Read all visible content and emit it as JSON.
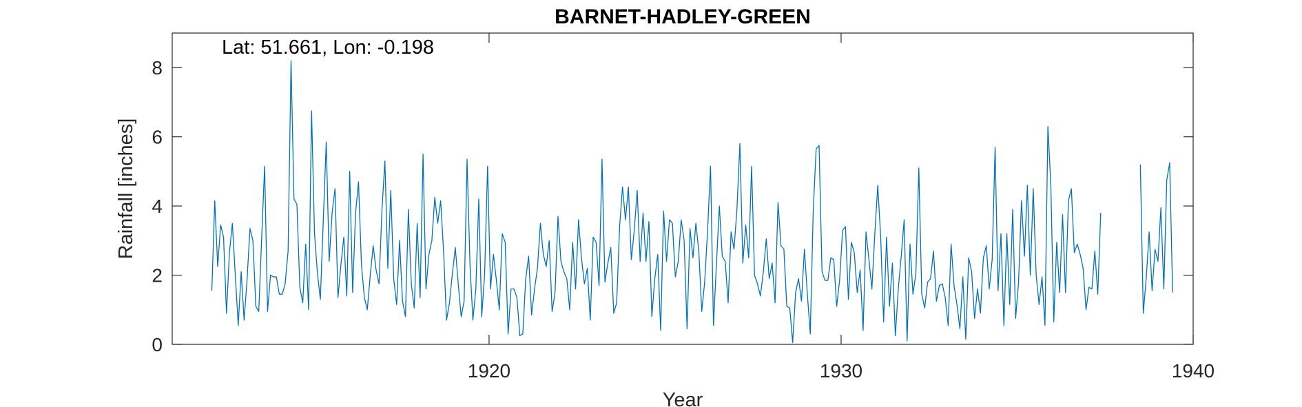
{
  "chart_data": {
    "type": "line",
    "title": "BARNET-HADLEY-GREEN",
    "annotation": "Lat: 51.661, Lon: -0.198",
    "xlabel": "Year",
    "ylabel": "Rainfall [inches]",
    "xlim": [
      1911,
      1940
    ],
    "ylim": [
      0,
      9
    ],
    "xticks": [
      1920,
      1930,
      1940
    ],
    "yticks": [
      0,
      2,
      4,
      6,
      8
    ],
    "grid": false,
    "line_color": "#0072BD",
    "series": [
      {
        "segments": [
          {
            "start_year": 1912.125,
            "step": 0.08333,
            "values": [
              1.55,
              4.15,
              2.25,
              3.45,
              3.1,
              0.9,
              2.65,
              3.5,
              2.0,
              0.55,
              2.1,
              0.7,
              1.85,
              3.35,
              3.0,
              1.1,
              0.95,
              3.1,
              5.15,
              0.95,
              2.0,
              1.95,
              1.95,
              1.45,
              1.45,
              1.75,
              2.7,
              8.2,
              4.2,
              4.05,
              1.65,
              1.2,
              2.9,
              1.0,
              6.75,
              3.2,
              2.05,
              1.3,
              3.6,
              5.85,
              2.4,
              3.8,
              4.5,
              1.35,
              2.3,
              3.1,
              1.4,
              5.0,
              1.5,
              3.8,
              4.7,
              2.3,
              1.35,
              1.0,
              2.0,
              2.85,
              2.15,
              1.75,
              3.9,
              5.3,
              2.2,
              4.45,
              1.9,
              1.15,
              3.0,
              1.25,
              0.8,
              3.9,
              1.75,
              1.05,
              3.5,
              1.35,
              5.5,
              1.6,
              2.6,
              3.0,
              4.25,
              3.5,
              4.15,
              2.7,
              0.7,
              1.2,
              2.05,
              2.8,
              1.75,
              0.8,
              1.25,
              5.35,
              2.3,
              0.7,
              1.6,
              4.2,
              0.8,
              2.05,
              5.15,
              1.6,
              2.6,
              1.85,
              1.0,
              3.2,
              2.95,
              0.3,
              1.6,
              1.6,
              1.35,
              0.25,
              0.3,
              1.9,
              2.55,
              0.85,
              1.6,
              2.2,
              3.5,
              2.6,
              2.25,
              3.0,
              0.95,
              1.5,
              3.7,
              2.4,
              2.1,
              1.9,
              1.0,
              2.95,
              1.6,
              3.6,
              2.5,
              1.75,
              2.2,
              0.7,
              3.1,
              2.95,
              1.7,
              5.35,
              1.8,
              2.35,
              2.8,
              0.9,
              1.2,
              3.4,
              4.55,
              3.6,
              4.55,
              2.45,
              3.3,
              4.45,
              2.4,
              3.8,
              2.4,
              3.55,
              0.8,
              1.9,
              2.6,
              0.4,
              3.85,
              2.4,
              3.6,
              3.5,
              1.95,
              2.4,
              3.6,
              3.0,
              0.45,
              3.35,
              2.5,
              3.5,
              2.7,
              0.95,
              1.8,
              3.3,
              5.15,
              0.55,
              2.3,
              4.0,
              2.55,
              2.4,
              1.2,
              3.25,
              2.75,
              3.9,
              5.8,
              2.35,
              3.45,
              2.5,
              5.15,
              2.0,
              1.75,
              1.4,
              2.1,
              3.05,
              1.9,
              2.35,
              1.2,
              4.1,
              2.85,
              2.75,
              1.1,
              1.05,
              0.05,
              1.5,
              1.9,
              1.25,
              2.75,
              1.45,
              0.3,
              3.85,
              5.65,
              5.75,
              2.1,
              1.85,
              1.85,
              2.5,
              2.45,
              1.1,
              1.85,
              3.3,
              3.4,
              1.3,
              2.95,
              2.65,
              1.5,
              2.15,
              0.4,
              3.25,
              2.45,
              1.6,
              3.2,
              4.6,
              3.1,
              0.65,
              3.1,
              1.1,
              2.35,
              0.25,
              1.6,
              2.55,
              3.6,
              0.1,
              2.9,
              1.45,
              2.05,
              5.1,
              1.45,
              1.05,
              1.8,
              1.9,
              2.7,
              1.25,
              1.7,
              1.75,
              1.35,
              0.55,
              2.9,
              1.7,
              1.15,
              0.45,
              1.95,
              0.15,
              2.5,
              2.1,
              0.75,
              1.6,
              0.9,
              2.5,
              2.85,
              1.6,
              2.45,
              5.7,
              1.55,
              3.2,
              0.55,
              3.2,
              1.15,
              3.9,
              0.75,
              1.8,
              4.15,
              2.55,
              4.6,
              2.0,
              4.5,
              2.0,
              1.15,
              1.95,
              0.55,
              6.3,
              4.6,
              0.65,
              2.95,
              1.5,
              3.75,
              1.5,
              4.15,
              4.5,
              2.65,
              2.9,
              2.6,
              2.2,
              1.0,
              1.65,
              1.6,
              2.7,
              1.45,
              3.8
            ]
          },
          {
            "start_year": 1938.5,
            "step": 0.08333,
            "values": [
              5.2,
              0.9,
              1.9,
              3.25,
              1.55,
              2.75,
              2.4,
              3.95,
              1.6,
              4.75,
              5.25,
              1.5
            ]
          }
        ]
      }
    ]
  }
}
